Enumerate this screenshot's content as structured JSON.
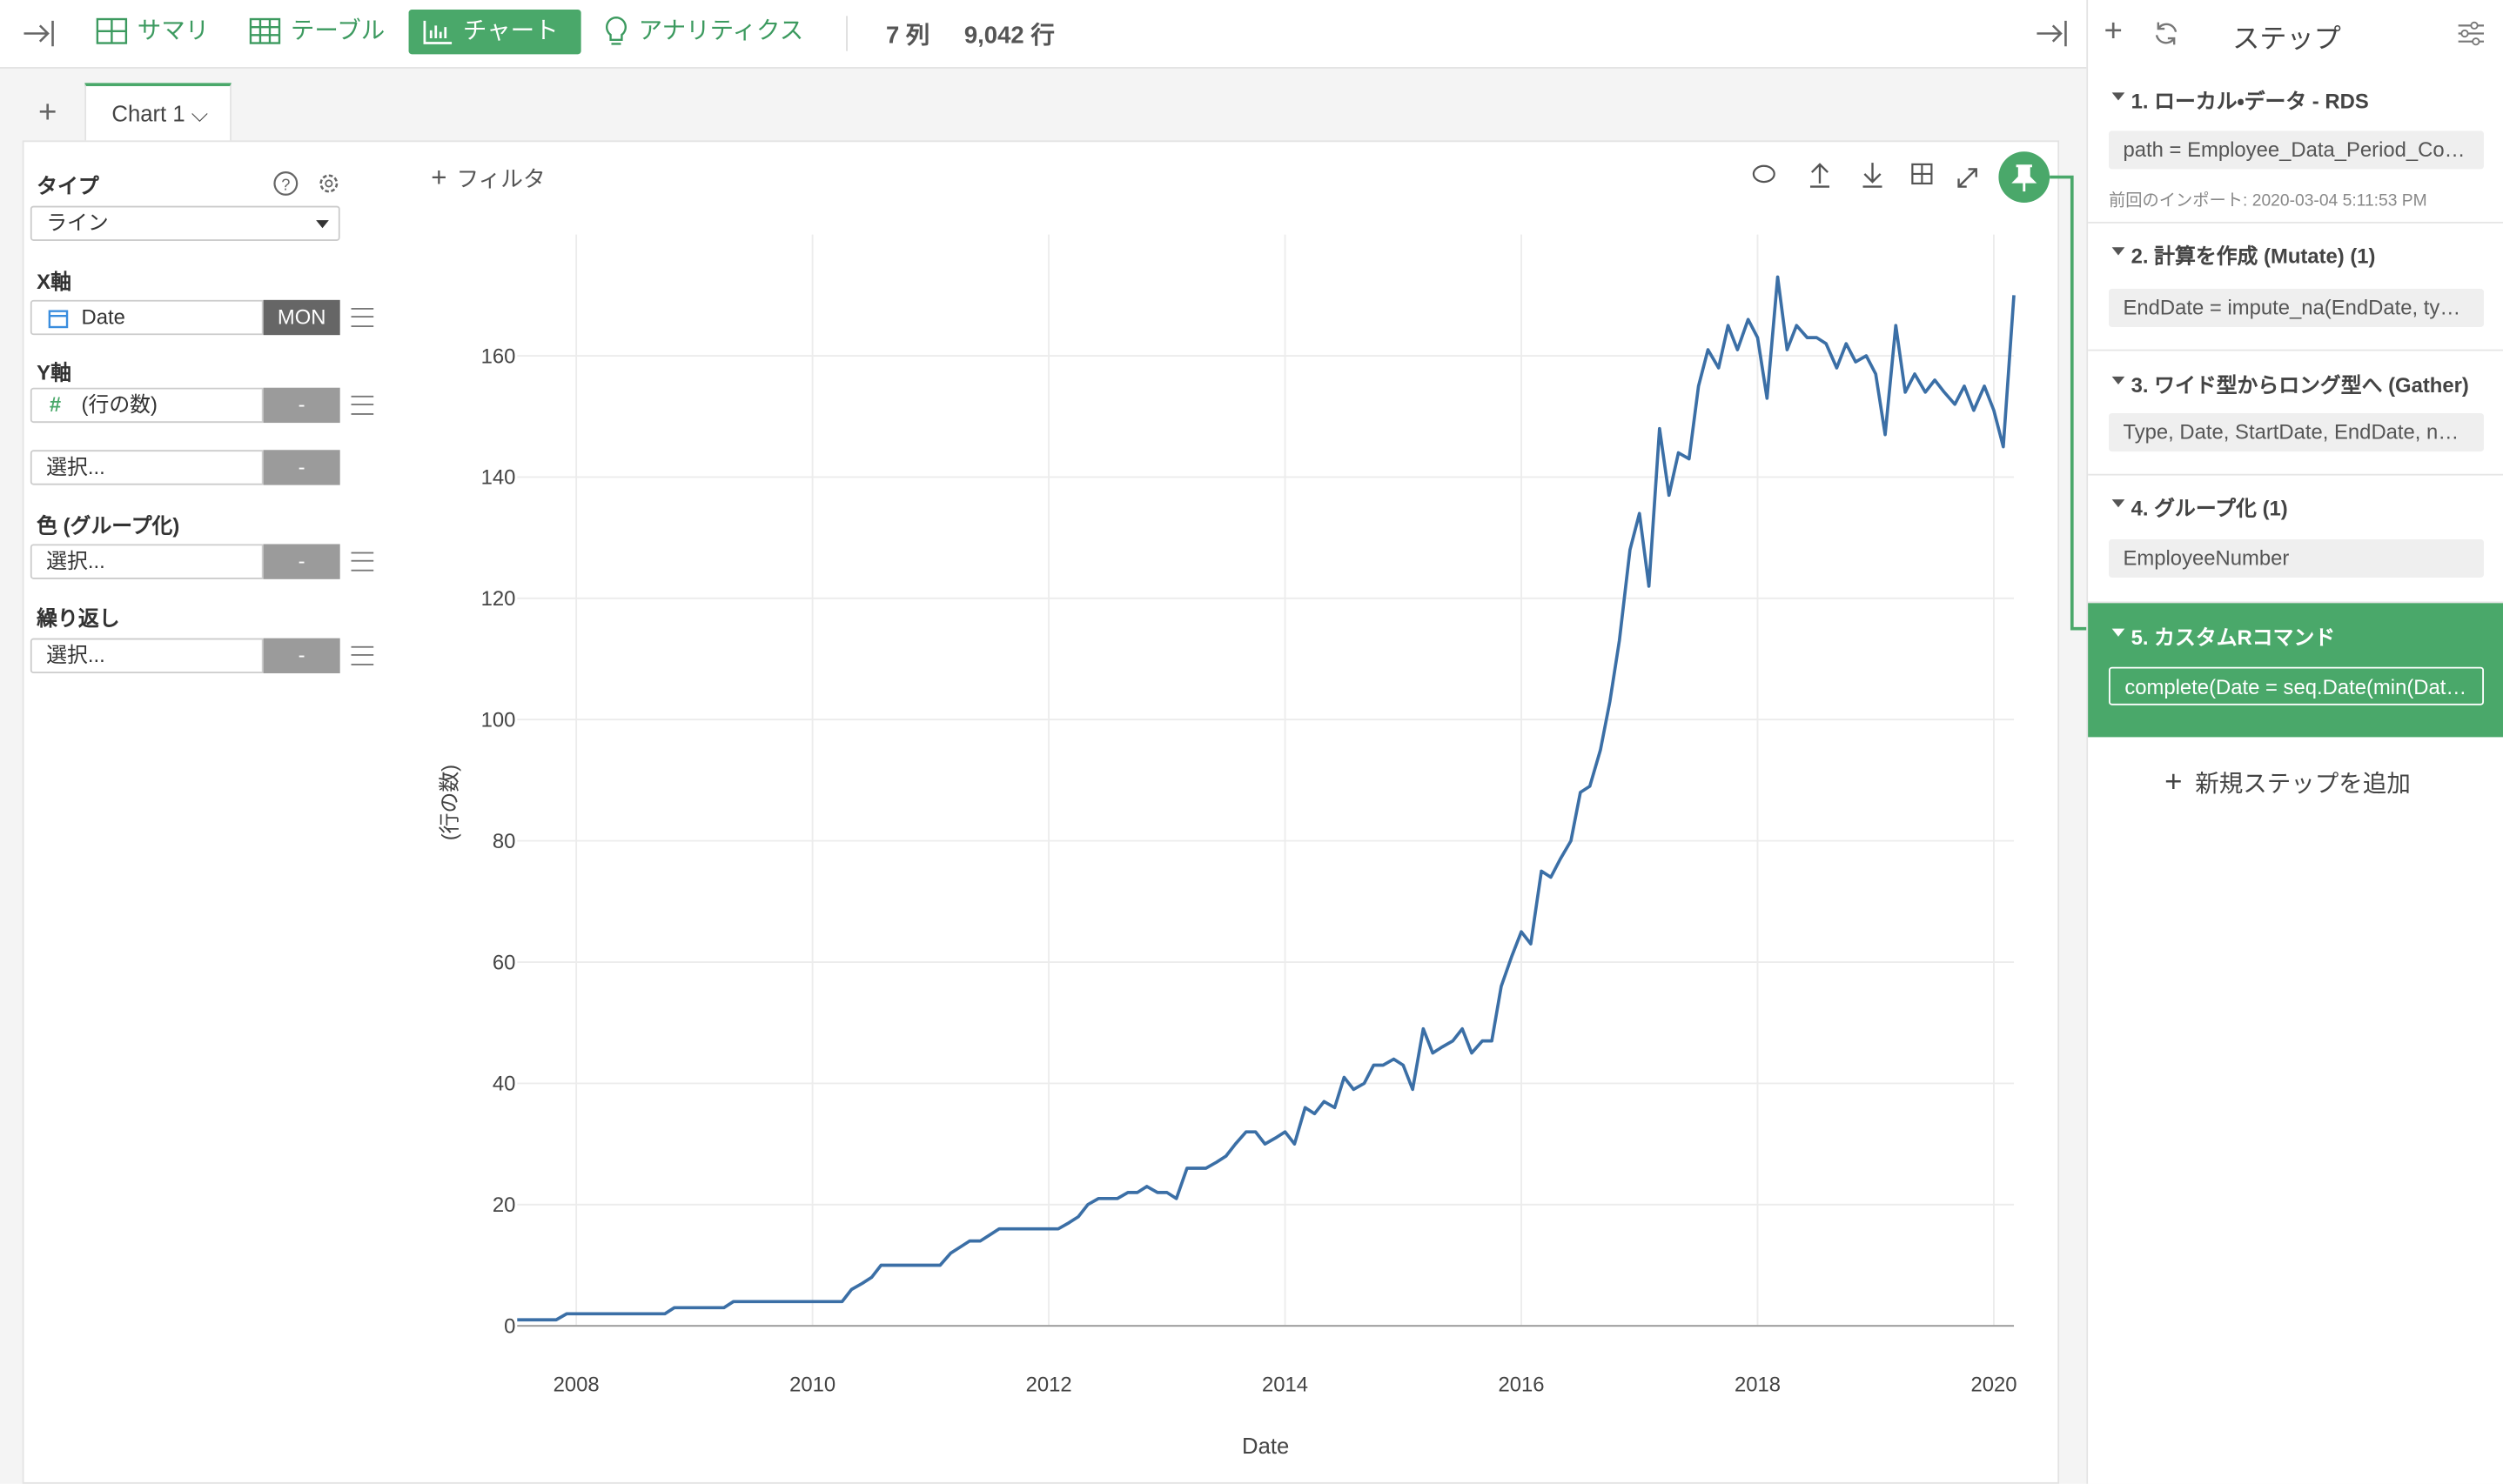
{
  "toolbar": {
    "tabs": [
      "サマリ",
      "テーブル",
      "チャート",
      "アナリティクス"
    ],
    "columns": "7 列",
    "rows": "9,042 行"
  },
  "chart_tab": "Chart 1",
  "config": {
    "type_label": "タイプ",
    "type_value": "ライン",
    "x_axis": "X軸",
    "x_field": "Date",
    "x_agg": "MON",
    "y_axis": "Y軸",
    "y_field": "(行の数)",
    "y_agg": "-",
    "y2_field": "選択...",
    "y2_agg": "-",
    "color_label": "色 (グループ化)",
    "color_field": "選択...",
    "color_agg": "-",
    "repeat_label": "繰り返し",
    "repeat_field": "選択...",
    "repeat_agg": "-",
    "filter": "フィルタ"
  },
  "steps_panel": {
    "title": "ステップ",
    "steps": [
      {
        "title": "1. ローカル・データ - RDS",
        "detail": "path = Employee_Data_Period_Co…",
        "note": "前回のインポート: 2020-03-04 5:11:53 PM"
      },
      {
        "title": "2. 計算を作成 (Mutate) (1)",
        "detail": "EndDate = impute_na(EndDate, typ…"
      },
      {
        "title": "3. ワイド型からロング型へ (Gather)",
        "detail": "Type, Date, StartDate, EndDate, n…"
      },
      {
        "title": "4. グループ化 (1)",
        "detail": "EmployeeNumber"
      },
      {
        "title": "5. カスタムRコマンド",
        "detail": "complete(Date = seq.Date(min(Date…"
      }
    ],
    "add": "新規ステップを追加"
  },
  "chart_data": {
    "type": "line",
    "xlabel": "Date",
    "ylabel": "(行の数)",
    "color": "#3b6fa6",
    "grid": true,
    "xlim": [
      2007.5,
      2020.17
    ],
    "xticks": [
      2008,
      2010,
      2012,
      2014,
      2016,
      2018,
      2020
    ],
    "ylim": [
      0,
      180
    ],
    "yticks": [
      0,
      20,
      40,
      60,
      80,
      100,
      120,
      140,
      160
    ],
    "x": [
      2007.5,
      2007.58,
      2007.67,
      2007.75,
      2007.83,
      2007.92,
      2008,
      2008.08,
      2008.17,
      2008.25,
      2008.33,
      2008.42,
      2008.5,
      2008.58,
      2008.67,
      2008.75,
      2008.83,
      2008.92,
      2009,
      2009.08,
      2009.17,
      2009.25,
      2009.33,
      2009.42,
      2009.5,
      2009.58,
      2009.67,
      2009.75,
      2009.83,
      2009.92,
      2010,
      2010.08,
      2010.17,
      2010.25,
      2010.33,
      2010.42,
      2010.5,
      2010.58,
      2010.67,
      2010.75,
      2010.83,
      2010.92,
      2011,
      2011.08,
      2011.17,
      2011.25,
      2011.33,
      2011.42,
      2011.5,
      2011.58,
      2011.67,
      2011.75,
      2011.83,
      2011.92,
      2012,
      2012.08,
      2012.17,
      2012.25,
      2012.33,
      2012.42,
      2012.5,
      2012.58,
      2012.67,
      2012.75,
      2012.83,
      2012.92,
      2013,
      2013.08,
      2013.17,
      2013.25,
      2013.33,
      2013.42,
      2013.5,
      2013.58,
      2013.67,
      2013.75,
      2013.83,
      2013.92,
      2014,
      2014.08,
      2014.17,
      2014.25,
      2014.33,
      2014.42,
      2014.5,
      2014.58,
      2014.67,
      2014.75,
      2014.83,
      2014.92,
      2015,
      2015.08,
      2015.17,
      2015.25,
      2015.33,
      2015.42,
      2015.5,
      2015.58,
      2015.67,
      2015.75,
      2015.83,
      2015.92,
      2016,
      2016.08,
      2016.17,
      2016.25,
      2016.33,
      2016.42,
      2016.5,
      2016.58,
      2016.67,
      2016.75,
      2016.83,
      2016.92,
      2017,
      2017.08,
      2017.17,
      2017.25,
      2017.33,
      2017.42,
      2017.5,
      2017.58,
      2017.67,
      2017.75,
      2017.83,
      2017.92,
      2018,
      2018.08,
      2018.17,
      2018.25,
      2018.33,
      2018.42,
      2018.5,
      2018.58,
      2018.67,
      2018.75,
      2018.83,
      2018.92,
      2019,
      2019.08,
      2019.17,
      2019.25,
      2019.33,
      2019.42,
      2019.5,
      2019.58,
      2019.67,
      2019.75,
      2019.83,
      2019.92,
      2020,
      2020.08,
      2020.17
    ],
    "values": [
      1,
      1,
      1,
      1,
      1,
      2,
      2,
      2,
      2,
      2,
      2,
      2,
      2,
      2,
      2,
      2,
      3,
      3,
      3,
      3,
      3,
      3,
      4,
      4,
      4,
      4,
      4,
      4,
      4,
      4,
      4,
      4,
      4,
      4,
      6,
      7,
      8,
      10,
      10,
      10,
      10,
      10,
      10,
      10,
      12,
      13,
      14,
      14,
      15,
      16,
      16,
      16,
      16,
      16,
      16,
      16,
      17,
      18,
      20,
      21,
      21,
      21,
      22,
      22,
      23,
      22,
      22,
      21,
      26,
      26,
      26,
      27,
      28,
      30,
      32,
      32,
      30,
      31,
      32,
      30,
      36,
      35,
      37,
      36,
      41,
      39,
      40,
      43,
      43,
      44,
      43,
      39,
      49,
      45,
      46,
      47,
      49,
      45,
      47,
      47,
      56,
      61,
      65,
      63,
      75,
      74,
      77,
      80,
      88,
      89,
      95,
      103,
      113,
      128,
      134,
      122,
      148,
      137,
      144,
      143,
      155,
      161,
      158,
      165,
      161,
      166,
      163,
      153,
      173,
      161,
      165,
      163,
      163,
      162,
      158,
      162,
      159,
      160,
      157,
      147,
      165,
      154,
      157,
      154,
      156,
      154,
      152,
      155,
      151,
      155,
      151,
      145,
      170
    ]
  }
}
